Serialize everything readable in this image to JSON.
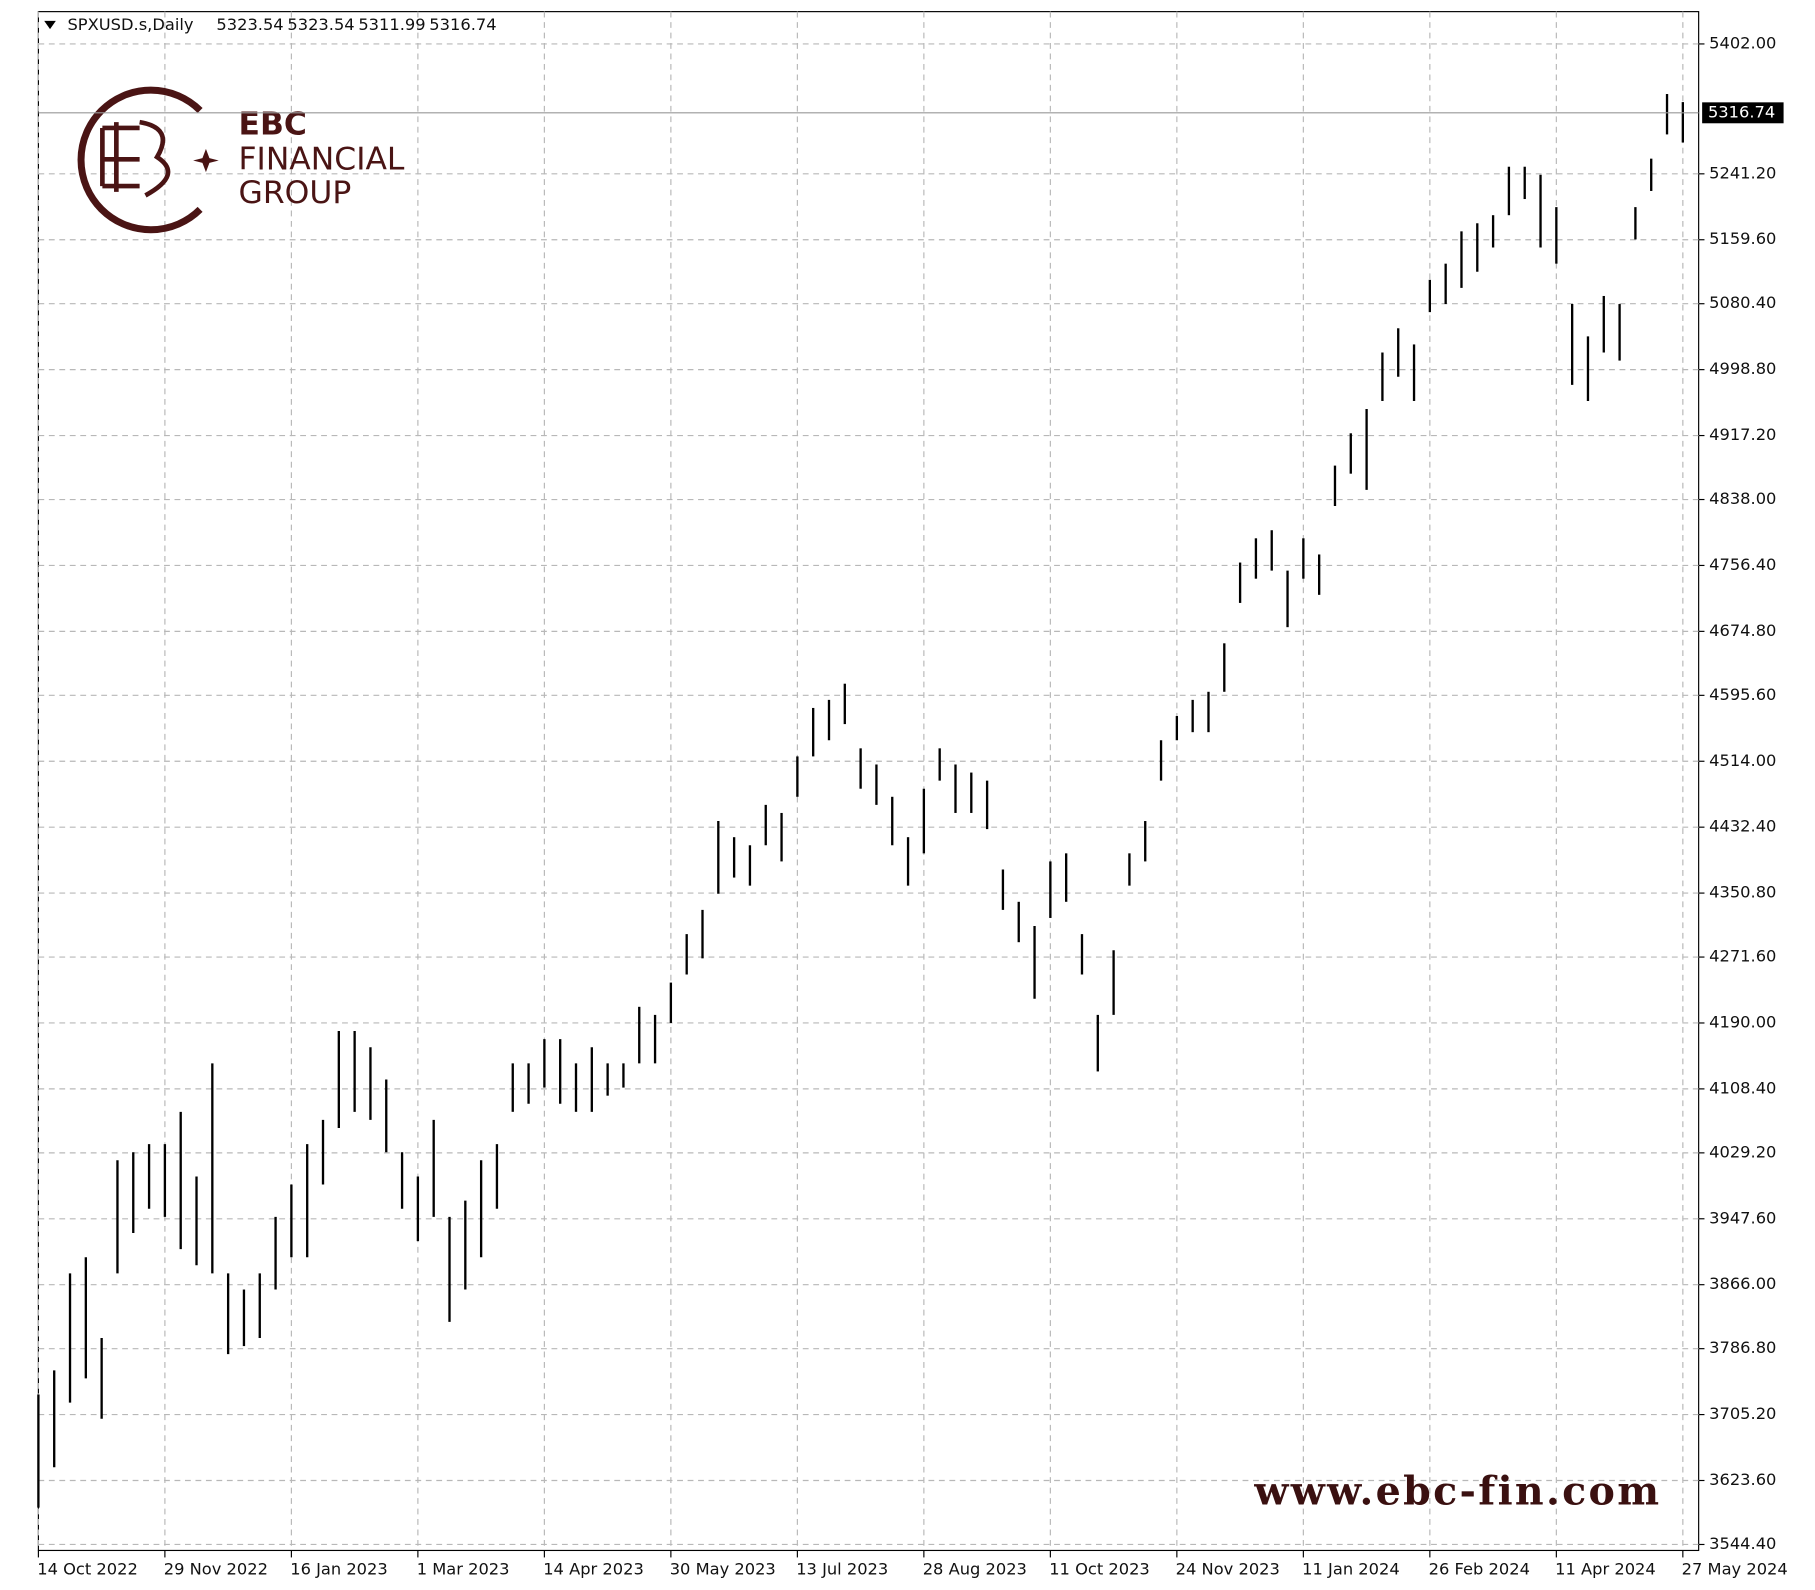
{
  "chart_data": {
    "type": "range-bar",
    "symbol": "SPXUSD.s,Daily",
    "quote": [
      5323.54,
      5323.54,
      5311.99,
      5316.74
    ],
    "last_price": 5316.74,
    "brand": {
      "name": "EBC",
      "line1": "FINANCIAL",
      "line2": "GROUP"
    },
    "watermark": "www.ebc-fin.com",
    "grid": true,
    "color": "#000000",
    "xlim": [
      0,
      420
    ],
    "xticks": [
      {
        "value": 0,
        "label": "14 Oct 2022"
      },
      {
        "value": 32,
        "label": "29 Nov 2022"
      },
      {
        "value": 64,
        "label": "16 Jan 2023"
      },
      {
        "value": 96,
        "label": "1 Mar 2023"
      },
      {
        "value": 128,
        "label": "14 Apr 2023"
      },
      {
        "value": 160,
        "label": "30 May 2023"
      },
      {
        "value": 192,
        "label": "13 Jul 2023"
      },
      {
        "value": 224,
        "label": "28 Aug 2023"
      },
      {
        "value": 256,
        "label": "11 Oct 2023"
      },
      {
        "value": 288,
        "label": "24 Nov 2023"
      },
      {
        "value": 320,
        "label": "11 Jan 2024"
      },
      {
        "value": 352,
        "label": "26 Feb 2024"
      },
      {
        "value": 384,
        "label": "11 Apr 2024"
      },
      {
        "value": 416,
        "label": "27 May 2024"
      }
    ],
    "ylim": [
      3537,
      5442
    ],
    "yticks": [
      {
        "value": 5402.0,
        "label": "5402.00"
      },
      {
        "value": 5241.2,
        "label": "5241.20"
      },
      {
        "value": 5159.6,
        "label": "5159.60"
      },
      {
        "value": 5080.4,
        "label": "5080.40"
      },
      {
        "value": 4998.8,
        "label": "4998.80"
      },
      {
        "value": 4917.2,
        "label": "4917.20"
      },
      {
        "value": 4838.0,
        "label": "4838.00"
      },
      {
        "value": 4756.4,
        "label": "4756.40"
      },
      {
        "value": 4674.8,
        "label": "4674.80"
      },
      {
        "value": 4595.6,
        "label": "4595.60"
      },
      {
        "value": 4514.0,
        "label": "4514.00"
      },
      {
        "value": 4432.4,
        "label": "4432.40"
      },
      {
        "value": 4350.8,
        "label": "4350.80"
      },
      {
        "value": 4271.6,
        "label": "4271.60"
      },
      {
        "value": 4190.0,
        "label": "4190.00"
      },
      {
        "value": 4108.4,
        "label": "4108.40"
      },
      {
        "value": 4029.2,
        "label": "4029.20"
      },
      {
        "value": 3947.6,
        "label": "3947.60"
      },
      {
        "value": 3866.0,
        "label": "3866.00"
      },
      {
        "value": 3786.8,
        "label": "3786.80"
      },
      {
        "value": 3705.2,
        "label": "3705.20"
      },
      {
        "value": 3623.6,
        "label": "3623.60"
      },
      {
        "value": 3544.4,
        "label": "3544.40"
      }
    ],
    "x": [
      0,
      4,
      8,
      12,
      16,
      20,
      24,
      28,
      32,
      36,
      40,
      44,
      48,
      52,
      56,
      60,
      64,
      68,
      72,
      76,
      80,
      84,
      88,
      92,
      96,
      100,
      104,
      108,
      112,
      116,
      120,
      124,
      128,
      132,
      136,
      140,
      144,
      148,
      152,
      156,
      160,
      164,
      168,
      172,
      176,
      180,
      184,
      188,
      192,
      196,
      200,
      204,
      208,
      212,
      216,
      220,
      224,
      228,
      232,
      236,
      240,
      244,
      248,
      252,
      256,
      260,
      264,
      268,
      272,
      276,
      280,
      284,
      288,
      292,
      296,
      300,
      304,
      308,
      312,
      316,
      320,
      324,
      328,
      332,
      336,
      340,
      344,
      348,
      352,
      356,
      360,
      364,
      368,
      372,
      376,
      380,
      384,
      388,
      392,
      396,
      400,
      404,
      408,
      412,
      416
    ],
    "high": [
      3730,
      3760,
      3880,
      3900,
      3800,
      4020,
      4030,
      4040,
      4040,
      4080,
      4000,
      4140,
      3880,
      3860,
      3880,
      3950,
      3990,
      4040,
      4070,
      4180,
      4180,
      4160,
      4120,
      4030,
      4000,
      4070,
      3950,
      3970,
      4020,
      4040,
      4140,
      4140,
      4170,
      4170,
      4140,
      4160,
      4140,
      4140,
      4210,
      4200,
      4240,
      4300,
      4330,
      4440,
      4420,
      4410,
      4460,
      4450,
      4520,
      4580,
      4590,
      4610,
      4530,
      4510,
      4470,
      4420,
      4480,
      4530,
      4510,
      4500,
      4490,
      4380,
      4340,
      4310,
      4390,
      4400,
      4300,
      4200,
      4280,
      4400,
      4440,
      4540,
      4570,
      4590,
      4600,
      4660,
      4760,
      4790,
      4800,
      4750,
      4790,
      4770,
      4880,
      4920,
      4950,
      5020,
      5050,
      5030,
      5110,
      5130,
      5170,
      5180,
      5190,
      5250,
      5250,
      5240,
      5200,
      5080,
      5040,
      5090,
      5080,
      5200,
      5260,
      5340,
      5330
    ],
    "low": [
      3590,
      3640,
      3720,
      3750,
      3700,
      3880,
      3930,
      3960,
      3950,
      3910,
      3890,
      3880,
      3780,
      3790,
      3800,
      3860,
      3900,
      3900,
      3990,
      4060,
      4080,
      4070,
      4030,
      3960,
      3920,
      3950,
      3820,
      3860,
      3900,
      3960,
      4080,
      4090,
      4110,
      4090,
      4080,
      4080,
      4100,
      4110,
      4140,
      4140,
      4190,
      4250,
      4270,
      4350,
      4370,
      4360,
      4410,
      4390,
      4470,
      4520,
      4540,
      4560,
      4480,
      4460,
      4410,
      4360,
      4400,
      4490,
      4450,
      4450,
      4430,
      4330,
      4290,
      4220,
      4320,
      4340,
      4250,
      4130,
      4200,
      4360,
      4390,
      4490,
      4540,
      4550,
      4550,
      4600,
      4710,
      4740,
      4750,
      4680,
      4740,
      4720,
      4830,
      4870,
      4850,
      4960,
      4990,
      4960,
      5070,
      5080,
      5100,
      5120,
      5150,
      5190,
      5210,
      5150,
      5130,
      4980,
      4960,
      5020,
      5010,
      5160,
      5220,
      5290,
      5280
    ]
  }
}
